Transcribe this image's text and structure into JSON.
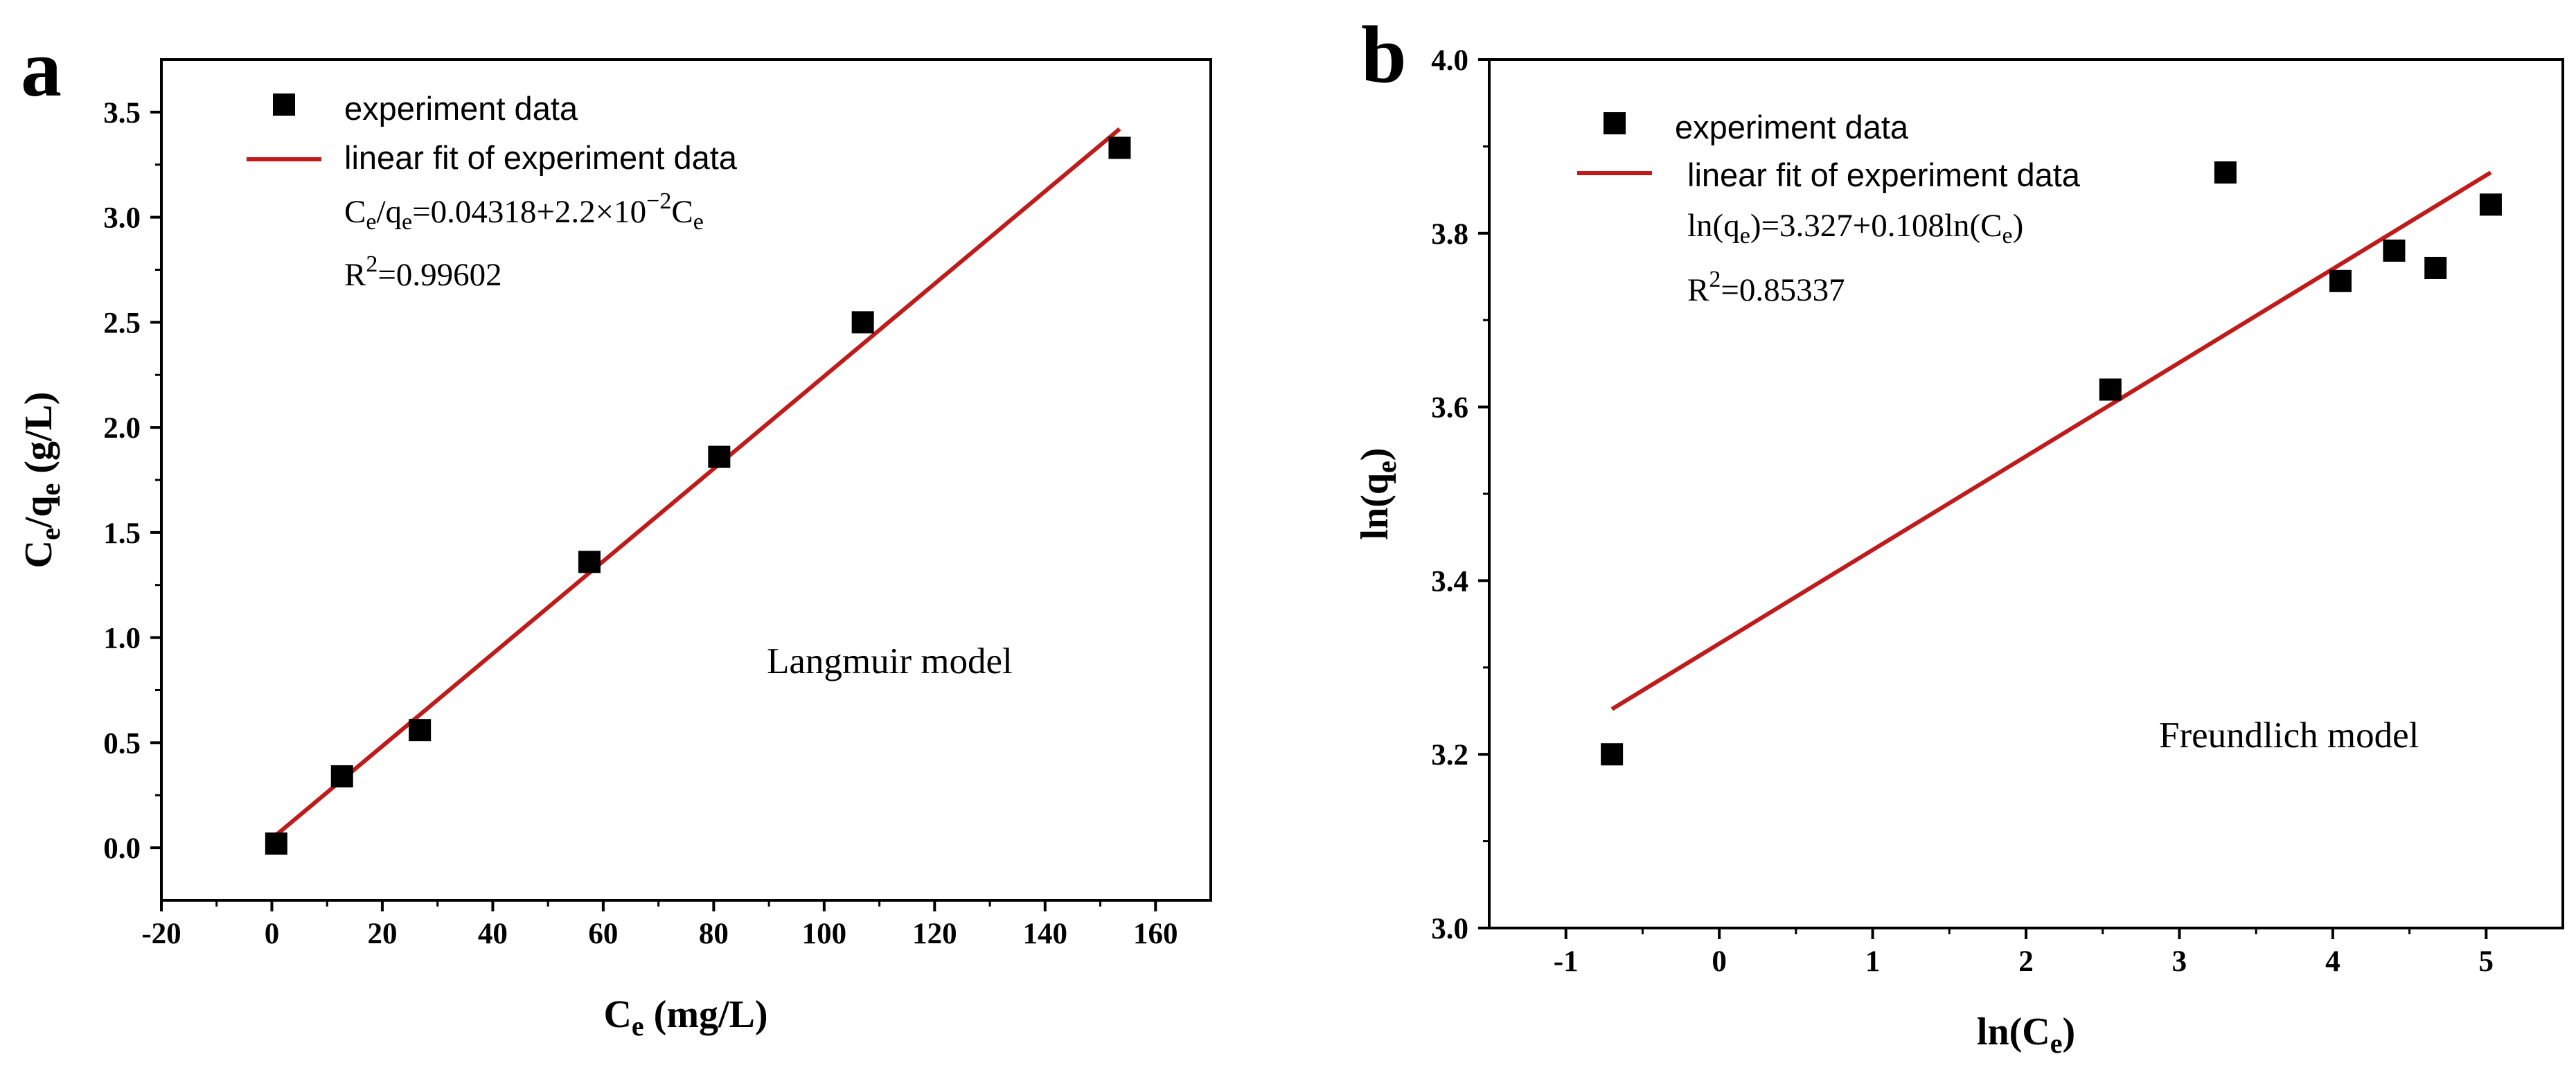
{
  "chart_data": [
    {
      "type": "scatter",
      "panel": "a",
      "title": "",
      "xlabel": {
        "main": "C",
        "sub": "e",
        "rest": " (mg/L)"
      },
      "ylabel": {
        "c": "C",
        "csub": "e",
        "slash": "/q",
        "qsub": "e",
        "rest": " (g/L)"
      },
      "xlim": [
        -20,
        170
      ],
      "ylim": [
        -0.25,
        3.75
      ],
      "xticks": [
        -20,
        0,
        20,
        40,
        60,
        80,
        100,
        120,
        140,
        160
      ],
      "yticks": [
        0.0,
        0.5,
        1.0,
        1.5,
        2.0,
        2.5,
        3.0,
        3.5
      ],
      "xtick_labels": [
        "-20",
        "0",
        "20",
        "40",
        "60",
        "80",
        "100",
        "120",
        "140",
        "160"
      ],
      "ytick_labels": [
        "0.0",
        "0.5",
        "1.0",
        "1.5",
        "2.0",
        "2.5",
        "3.0",
        "3.5"
      ],
      "series": [
        {
          "name": "experiment data",
          "kind": "points",
          "x": [
            0.8,
            12.7,
            26.8,
            57.5,
            81.0,
            107.0,
            153.5
          ],
          "y": [
            0.02,
            0.34,
            0.56,
            1.36,
            1.86,
            2.5,
            3.33
          ]
        },
        {
          "name": "linear fit of experiment data",
          "kind": "line",
          "x": [
            0.8,
            153.5
          ],
          "y": [
            0.061,
            3.42
          ]
        }
      ],
      "legend": {
        "position": "top-left",
        "points_label": "experiment data",
        "line_label": "linear fit of experiment data"
      },
      "equation": {
        "c1": "C",
        "s1": "e",
        "t1": "/q",
        "s2": "e",
        "t2": "=0.04318+2.2×10",
        "exp": "−2",
        "t3": "C",
        "s3": "e"
      },
      "r2": {
        "r": "R",
        "exp": "2",
        "value": "=0.99602"
      },
      "annotation": "Langmuir model",
      "colors": {
        "points": "#000000",
        "line": "#c01b1b"
      }
    },
    {
      "type": "scatter",
      "panel": "b",
      "title": "",
      "xlabel": {
        "pre": "ln(C",
        "sub": "e",
        "post": ")"
      },
      "ylabel": {
        "pre": "ln(q",
        "sub": "e",
        "post": ")"
      },
      "xlim": [
        -1.5,
        5.5
      ],
      "ylim": [
        3.0,
        4.0
      ],
      "xticks": [
        -1,
        0,
        1,
        2,
        3,
        4,
        5
      ],
      "yticks": [
        3.0,
        3.2,
        3.4,
        3.6,
        3.8,
        4.0
      ],
      "xtick_labels": [
        "-1",
        "0",
        "1",
        "2",
        "3",
        "4",
        "5"
      ],
      "ytick_labels": [
        "3.0",
        "3.2",
        "3.4",
        "3.6",
        "3.8",
        "4.0"
      ],
      "series": [
        {
          "name": "experiment data",
          "kind": "points",
          "x": [
            -0.7,
            2.55,
            3.3,
            4.05,
            4.4,
            4.67,
            5.03
          ],
          "y": [
            3.2,
            3.62,
            3.87,
            3.745,
            3.78,
            3.76,
            3.833
          ]
        },
        {
          "name": "linear fit of experiment data",
          "kind": "line",
          "x": [
            -0.7,
            5.03
          ],
          "y": [
            3.252,
            3.87
          ]
        }
      ],
      "legend": {
        "position": "top-left",
        "points_label": "experiment data",
        "line_label": "linear fit of experiment data"
      },
      "equation": {
        "t1": "ln(q",
        "s1": "e",
        "t2": ")=3.327+0.108ln(C",
        "s2": "e",
        "t3": ")"
      },
      "r2": {
        "r": "R",
        "exp": "2",
        "value": "=0.85337"
      },
      "annotation": "Freundlich model",
      "colors": {
        "points": "#000000",
        "line": "#c01b1b"
      }
    }
  ]
}
